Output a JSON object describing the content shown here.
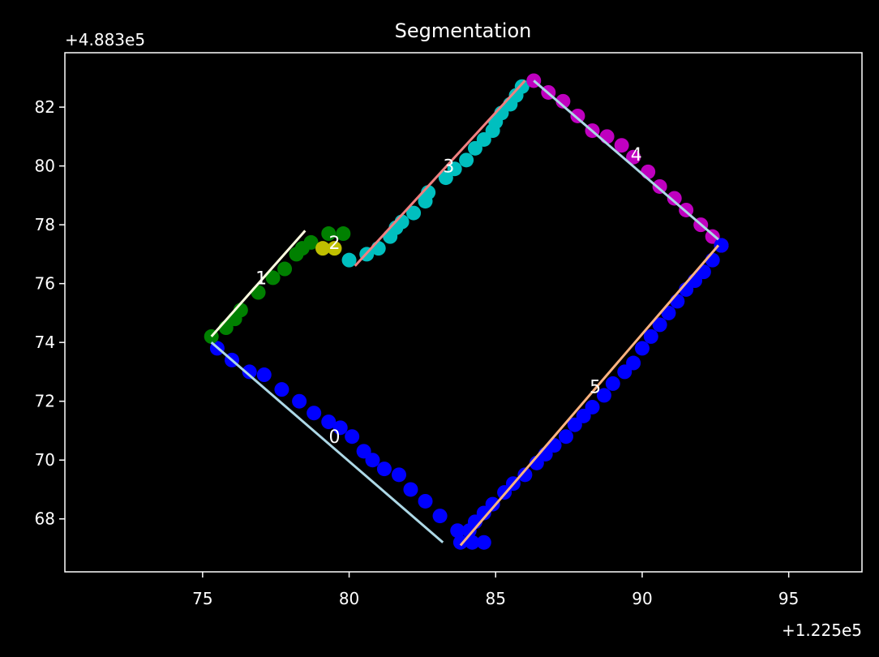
{
  "chart_data": {
    "type": "scatter",
    "title": "Segmentation",
    "x_offset_label": "+1.225e5",
    "y_offset_label": "+4.883e5",
    "xlabel": "",
    "ylabel": "",
    "xlim": [
      70.3,
      97.5
    ],
    "ylim": [
      66.2,
      83.85
    ],
    "xticks": [
      75,
      80,
      85,
      90,
      95
    ],
    "yticks": [
      68,
      70,
      72,
      74,
      76,
      78,
      80,
      82
    ],
    "background": "#000000",
    "foreground": "#ffffff",
    "grid": false,
    "legend": false,
    "segments": [
      {
        "label": "0",
        "label_pos": [
          79.5,
          70.8
        ],
        "point_color": "#0000ff",
        "line_color": "#add8e6",
        "line": [
          [
            75.3,
            74.0
          ],
          [
            83.2,
            67.2
          ]
        ],
        "points": [
          [
            75.5,
            73.8
          ],
          [
            76.0,
            73.4
          ],
          [
            76.6,
            73.0
          ],
          [
            77.1,
            72.9
          ],
          [
            77.7,
            72.4
          ],
          [
            78.3,
            72.0
          ],
          [
            78.8,
            71.6
          ],
          [
            79.3,
            71.3
          ],
          [
            79.7,
            71.1
          ],
          [
            80.1,
            70.8
          ],
          [
            80.5,
            70.3
          ],
          [
            80.8,
            70.0
          ],
          [
            81.2,
            69.7
          ],
          [
            81.7,
            69.5
          ],
          [
            82.1,
            69.0
          ],
          [
            82.6,
            68.6
          ],
          [
            83.1,
            68.1
          ],
          [
            83.7,
            67.6
          ],
          [
            84.2,
            67.2
          ],
          [
            84.6,
            67.2
          ]
        ]
      },
      {
        "label": "1",
        "label_pos": [
          77.0,
          76.2
        ],
        "point_color": "#008000",
        "line_color": "#ffffe0",
        "line": [
          [
            75.3,
            74.2
          ],
          [
            78.5,
            77.8
          ]
        ],
        "points": [
          [
            75.3,
            74.2
          ],
          [
            75.8,
            74.5
          ],
          [
            76.1,
            74.8
          ],
          [
            76.3,
            75.1
          ],
          [
            76.9,
            75.7
          ],
          [
            77.4,
            76.2
          ],
          [
            77.8,
            76.5
          ],
          [
            78.2,
            77.0
          ],
          [
            78.4,
            77.2
          ],
          [
            78.7,
            77.4
          ],
          [
            79.3,
            77.7
          ],
          [
            79.8,
            77.7
          ]
        ]
      },
      {
        "label": "2",
        "label_pos": [
          79.5,
          77.4
        ],
        "point_color": "#bfbf00",
        "line_color": "#bfbf00",
        "line": [],
        "points": [
          [
            79.1,
            77.2
          ],
          [
            79.5,
            77.2
          ]
        ]
      },
      {
        "label": "3",
        "label_pos": [
          83.4,
          80.0
        ],
        "point_color": "#00bfbf",
        "line_color": "#f08080",
        "line": [
          [
            80.2,
            76.6
          ],
          [
            86.0,
            82.9
          ]
        ],
        "points": [
          [
            80.0,
            76.8
          ],
          [
            80.6,
            77.0
          ],
          [
            81.0,
            77.2
          ],
          [
            81.4,
            77.6
          ],
          [
            81.6,
            77.9
          ],
          [
            81.8,
            78.1
          ],
          [
            82.2,
            78.4
          ],
          [
            82.6,
            78.8
          ],
          [
            82.7,
            79.1
          ],
          [
            83.3,
            79.6
          ],
          [
            83.6,
            79.9
          ],
          [
            84.0,
            80.2
          ],
          [
            84.3,
            80.6
          ],
          [
            84.6,
            80.9
          ],
          [
            84.9,
            81.2
          ],
          [
            85.0,
            81.5
          ],
          [
            85.2,
            81.8
          ],
          [
            85.5,
            82.1
          ],
          [
            85.7,
            82.4
          ],
          [
            85.9,
            82.7
          ]
        ]
      },
      {
        "label": "4",
        "label_pos": [
          89.8,
          80.4
        ],
        "point_color": "#bf00bf",
        "line_color": "#add8e6",
        "line": [
          [
            86.3,
            82.9
          ],
          [
            92.6,
            77.5
          ]
        ],
        "points": [
          [
            86.3,
            82.9
          ],
          [
            86.8,
            82.5
          ],
          [
            87.3,
            82.2
          ],
          [
            87.8,
            81.7
          ],
          [
            88.3,
            81.2
          ],
          [
            88.8,
            81.0
          ],
          [
            89.3,
            80.7
          ],
          [
            89.7,
            80.3
          ],
          [
            90.2,
            79.8
          ],
          [
            90.6,
            79.3
          ],
          [
            91.1,
            78.9
          ],
          [
            91.5,
            78.5
          ],
          [
            92.0,
            78.0
          ],
          [
            92.4,
            77.6
          ],
          [
            92.7,
            77.3
          ]
        ]
      },
      {
        "label": "5",
        "label_pos": [
          88.4,
          72.5
        ],
        "point_color": "#0000ff",
        "line_color": "#ffb380",
        "line": [
          [
            83.8,
            67.1
          ],
          [
            92.6,
            77.3
          ]
        ],
        "points": [
          [
            83.8,
            67.2
          ],
          [
            84.1,
            67.6
          ],
          [
            84.3,
            67.9
          ],
          [
            84.6,
            68.2
          ],
          [
            84.9,
            68.5
          ],
          [
            85.3,
            68.9
          ],
          [
            85.6,
            69.2
          ],
          [
            86.0,
            69.5
          ],
          [
            86.4,
            69.9
          ],
          [
            86.7,
            70.2
          ],
          [
            87.0,
            70.5
          ],
          [
            87.4,
            70.8
          ],
          [
            87.7,
            71.2
          ],
          [
            88.0,
            71.5
          ],
          [
            88.3,
            71.8
          ],
          [
            88.7,
            72.2
          ],
          [
            89.0,
            72.6
          ],
          [
            89.4,
            73.0
          ],
          [
            89.7,
            73.3
          ],
          [
            90.0,
            73.8
          ],
          [
            90.3,
            74.2
          ],
          [
            90.6,
            74.6
          ],
          [
            90.9,
            75.0
          ],
          [
            91.2,
            75.4
          ],
          [
            91.5,
            75.8
          ],
          [
            91.8,
            76.1
          ],
          [
            92.1,
            76.4
          ],
          [
            92.4,
            76.8
          ],
          [
            92.7,
            77.3
          ]
        ]
      }
    ]
  }
}
